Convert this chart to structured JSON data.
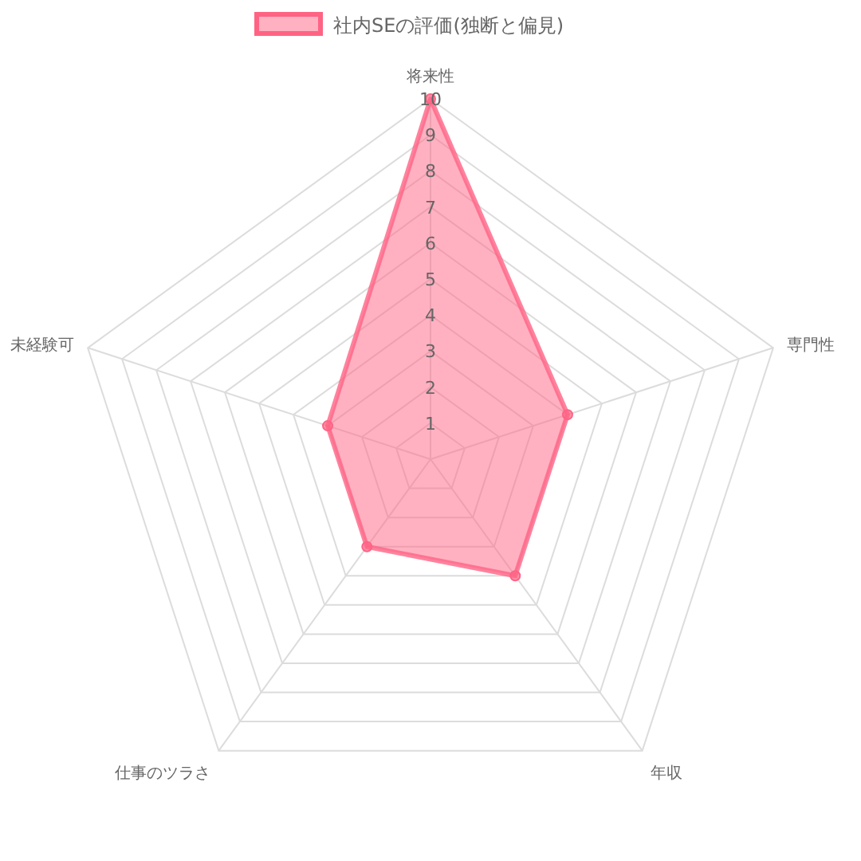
{
  "chart_data": {
    "type": "radar",
    "categories": [
      "将来性",
      "専門性",
      "年収",
      "仕事のツラさ",
      "未経験可"
    ],
    "series": [
      {
        "name": "社内SEの評価(独断と偏見)",
        "color": "#ff6384",
        "values": [
          10,
          4,
          4,
          3,
          3
        ]
      }
    ],
    "ylim": [
      0,
      10
    ],
    "yticks": [
      1,
      2,
      3,
      4,
      5,
      6,
      7,
      8,
      9,
      10
    ],
    "grid": true,
    "legend": "top",
    "marker": "circle"
  }
}
